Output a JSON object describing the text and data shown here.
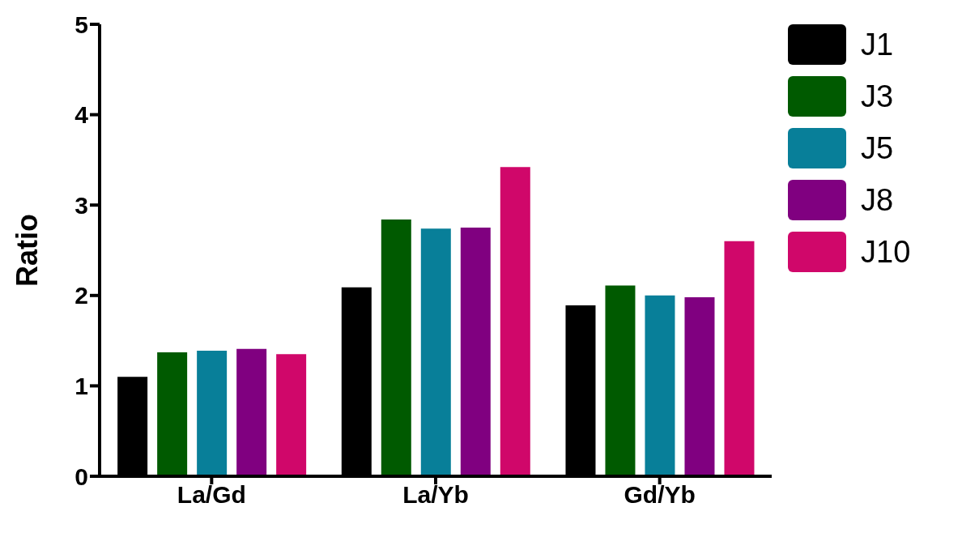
{
  "chart_data": {
    "type": "bar",
    "ylabel": "Ratio",
    "categories": [
      "La/Gd",
      "La/Yb",
      "Gd/Yb"
    ],
    "series": [
      {
        "name": "J1",
        "color": "#000000",
        "values": [
          1.1,
          2.09,
          1.89
        ]
      },
      {
        "name": "J3",
        "color": "#005a00",
        "values": [
          1.37,
          2.84,
          2.11
        ]
      },
      {
        "name": "J5",
        "color": "#087f99",
        "values": [
          1.39,
          2.74,
          2.0
        ]
      },
      {
        "name": "J8",
        "color": "#800080",
        "values": [
          1.41,
          2.75,
          1.98
        ]
      },
      {
        "name": "J10",
        "color": "#d0076a",
        "values": [
          1.35,
          3.42,
          2.6
        ]
      }
    ],
    "ylim": [
      0,
      5
    ],
    "yticks": [
      0,
      1,
      2,
      3,
      4,
      5
    ],
    "grid": false,
    "legend": "top right"
  }
}
